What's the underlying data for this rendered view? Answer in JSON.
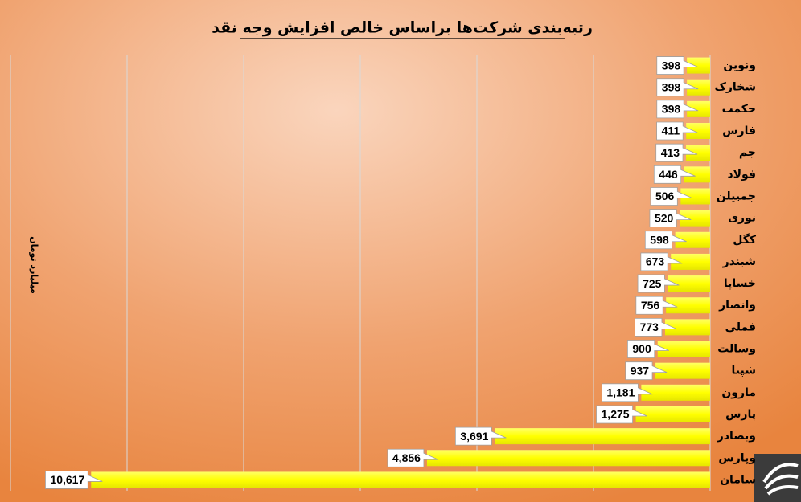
{
  "chart_data": {
    "type": "hbar",
    "title": "رتبه‌بندی شرکت‌ها براساس خالص افزایش وجه نقد",
    "x_label": "میلیارد تومان",
    "categories": [
      "ونوین",
      "شخارک",
      "حکمت",
      "فارس",
      "جم",
      "فولاد",
      "جمپیلن",
      "نوری",
      "کگل",
      "شبندر",
      "خساپا",
      "وانصار",
      "فملی",
      "وسالت",
      "شپنا",
      "مارون",
      "پارس",
      "وبصادر",
      "وپارس",
      "سامان"
    ],
    "values": [
      398,
      398,
      398,
      411,
      413,
      446,
      506,
      520,
      598,
      673,
      725,
      756,
      773,
      900,
      937,
      1181,
      1275,
      3691,
      4856,
      10617
    ],
    "value_labels": [
      "398",
      "398",
      "398",
      "411",
      "413",
      "446",
      "506",
      "520",
      "598",
      "673",
      "725",
      "756",
      "773",
      "900",
      "937",
      "1,181",
      "1,275",
      "3,691",
      "4,856",
      "10,617"
    ],
    "color": "#ffff00",
    "xlim": [
      0,
      12000
    ],
    "xticks": [
      0,
      2000,
      4000,
      6000,
      8000,
      10000,
      12000
    ],
    "direction": "right-to-left",
    "grid": true
  }
}
